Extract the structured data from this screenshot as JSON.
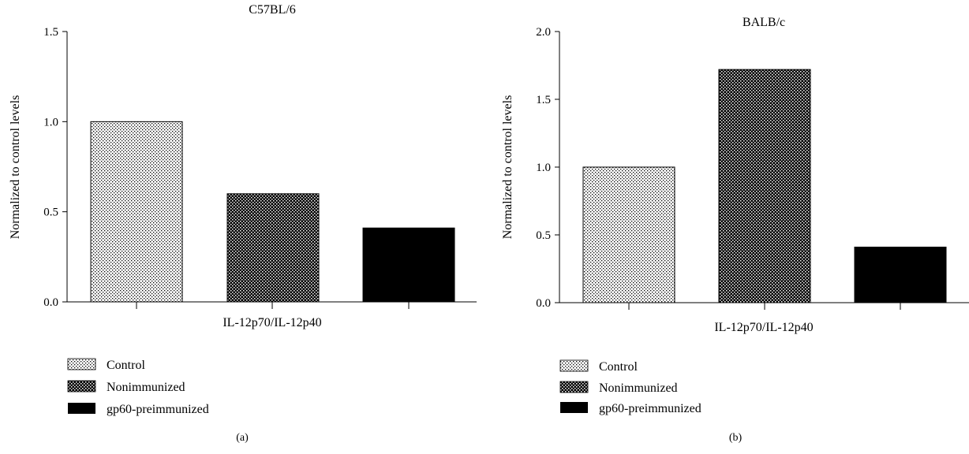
{
  "chart_data": [
    {
      "type": "bar",
      "title": "C57BL/6",
      "xlabel": "IL-12p70/IL-12p40",
      "ylabel": "Normalized to control levels",
      "ylim": [
        0,
        1.5
      ],
      "yticks": [
        "0.0",
        "0.5",
        "1.0",
        "1.5"
      ],
      "series": [
        {
          "name": "Control",
          "values": [
            1.0
          ]
        },
        {
          "name": "Nonimmunized",
          "values": [
            0.6
          ]
        },
        {
          "name": "gp60-preimmunized",
          "values": [
            0.41
          ]
        }
      ],
      "legend_position": "bottom-left",
      "grid": false,
      "panel_label": "(a)"
    },
    {
      "type": "bar",
      "title": "BALB/c",
      "xlabel": "IL-12p70/IL-12p40",
      "ylabel": "Normalized to control levels",
      "ylim": [
        0,
        2.0
      ],
      "yticks": [
        "0.0",
        "0.5",
        "1.0",
        "1.5",
        "2.0"
      ],
      "series": [
        {
          "name": "Control",
          "values": [
            1.0
          ]
        },
        {
          "name": "Nonimmunized",
          "values": [
            1.72
          ]
        },
        {
          "name": "gp60-preimmunized",
          "values": [
            0.41
          ]
        }
      ],
      "legend_position": "bottom-left",
      "grid": false,
      "panel_label": "(b)"
    }
  ]
}
